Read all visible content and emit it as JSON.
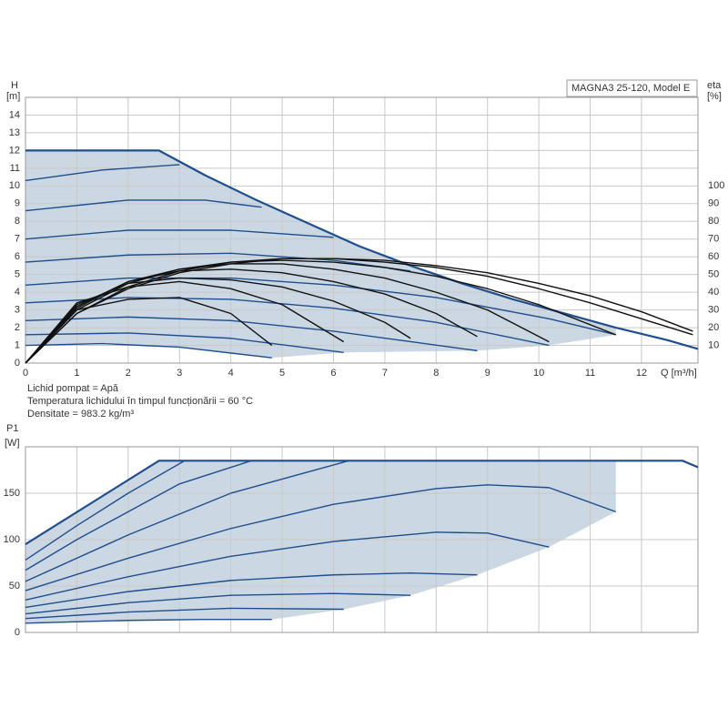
{
  "notes": [
    "Lichid pompat = Apă",
    "Temperatura lichidului în timpul funcționării = 60 °C",
    "Densitate = 983.2 kg/m³"
  ],
  "chart_data": [
    {
      "type": "line",
      "title": "MAGNA3 25-120, Model E",
      "ylabel": "H",
      "yunit": "[m]",
      "y2label": "eta",
      "y2unit": "[%]",
      "xlabel": "Q [m³/h]",
      "xlim": [
        0,
        13.1
      ],
      "ylim": [
        0,
        15
      ],
      "y2lim": [
        0,
        150
      ],
      "xticks": [
        0,
        1,
        2,
        3,
        4,
        5,
        6,
        7,
        8,
        9,
        10,
        11,
        12
      ],
      "yticks": [
        0,
        1,
        2,
        3,
        4,
        5,
        6,
        7,
        8,
        9,
        10,
        11,
        12,
        13,
        14
      ],
      "y2ticks": [
        10,
        20,
        30,
        40,
        50,
        60,
        70,
        80,
        90,
        100
      ],
      "grid": true,
      "shade_color": "#cbd8e4",
      "series": [
        {
          "color": "#1f4e8c",
          "x": [
            0,
            2.6,
            3.5,
            4.5,
            5.5,
            6.5,
            7.5,
            8.5,
            9.5,
            10.5,
            11.5,
            12.5,
            13.1
          ],
          "values": [
            12,
            12,
            10.6,
            9.2,
            7.9,
            6.6,
            5.5,
            4.5,
            3.6,
            2.8,
            2.0,
            1.3,
            0.8
          ]
        },
        {
          "color": "#1f4e8c",
          "x": [
            0,
            1.5,
            3
          ],
          "values": [
            10.3,
            10.9,
            11.2
          ]
        },
        {
          "color": "#1f4e8c",
          "x": [
            0,
            2,
            3.5,
            4.6
          ],
          "values": [
            8.6,
            9.2,
            9.2,
            8.8
          ]
        },
        {
          "color": "#1f4e8c",
          "x": [
            0,
            2,
            4,
            6
          ],
          "values": [
            7.0,
            7.5,
            7.5,
            7.1
          ]
        },
        {
          "color": "#1f4e8c",
          "x": [
            0,
            2,
            4,
            6,
            7.5
          ],
          "values": [
            5.7,
            6.1,
            6.2,
            5.8,
            5.2
          ]
        },
        {
          "color": "#1f4e8c",
          "x": [
            0,
            2,
            4,
            6,
            8,
            10.2,
            11.5
          ],
          "values": [
            4.4,
            4.8,
            4.8,
            4.4,
            3.7,
            2.5,
            1.6
          ]
        },
        {
          "color": "#1f4e8c",
          "x": [
            0,
            2,
            4,
            6,
            8,
            10.2
          ],
          "values": [
            3.4,
            3.7,
            3.6,
            3.1,
            2.3,
            1.0
          ]
        },
        {
          "color": "#1f4e8c",
          "x": [
            0,
            2,
            4,
            6,
            8.8
          ],
          "values": [
            2.4,
            2.6,
            2.4,
            1.8,
            0.7
          ]
        },
        {
          "color": "#1f4e8c",
          "x": [
            0,
            2,
            4,
            6.2
          ],
          "values": [
            1.6,
            1.7,
            1.4,
            0.6
          ]
        },
        {
          "color": "#1f4e8c",
          "x": [
            0,
            1.5,
            3,
            4.8
          ],
          "values": [
            1.0,
            1.1,
            0.9,
            0.3
          ]
        },
        {
          "color": "#111111",
          "axis": "y2",
          "x": [
            0,
            1,
            2,
            3,
            4,
            5,
            6,
            7,
            8,
            9,
            10,
            11,
            12,
            13
          ],
          "values": [
            0,
            28,
            42,
            51,
            56,
            59,
            59,
            57,
            54,
            49,
            42,
            34,
            25,
            16
          ]
        },
        {
          "color": "#111111",
          "axis": "y2",
          "x": [
            0,
            1,
            2,
            3,
            4,
            5,
            6,
            7,
            8,
            9,
            10,
            11,
            12,
            13
          ],
          "values": [
            0,
            28,
            43,
            52,
            57,
            59,
            59,
            58,
            55,
            51,
            45,
            38,
            29,
            18
          ]
        },
        {
          "color": "#111111",
          "axis": "y2",
          "x": [
            0,
            1,
            2,
            3,
            4,
            5,
            6,
            7,
            8,
            9,
            10,
            11.5
          ],
          "values": [
            0,
            30,
            45,
            53,
            57,
            58,
            57,
            54,
            49,
            42,
            33,
            16
          ]
        },
        {
          "color": "#111111",
          "axis": "y2",
          "x": [
            0,
            1,
            2,
            3,
            4,
            5,
            6,
            7,
            8,
            9,
            10.2
          ],
          "values": [
            0,
            31,
            46,
            53,
            56,
            56,
            53,
            48,
            40,
            30,
            12
          ]
        },
        {
          "color": "#111111",
          "axis": "y2",
          "x": [
            0,
            1,
            2,
            3,
            4,
            5,
            6,
            7,
            8,
            8.8
          ],
          "values": [
            0,
            32,
            46,
            52,
            53,
            51,
            46,
            39,
            28,
            15
          ]
        },
        {
          "color": "#111111",
          "axis": "y2",
          "x": [
            0,
            1,
            2,
            3,
            4,
            5,
            6,
            7,
            7.5
          ],
          "values": [
            0,
            33,
            45,
            48,
            47,
            43,
            35,
            23,
            14
          ]
        },
        {
          "color": "#111111",
          "axis": "y2",
          "x": [
            0,
            1,
            2,
            3,
            4,
            5,
            6.2
          ],
          "values": [
            0,
            34,
            43,
            46,
            42,
            33,
            12
          ]
        },
        {
          "color": "#111111",
          "axis": "y2",
          "x": [
            0,
            1,
            2,
            3,
            4,
            4.8
          ],
          "values": [
            0,
            30,
            36,
            37,
            28,
            10
          ]
        }
      ]
    },
    {
      "type": "line",
      "ylabel": "P1",
      "yunit": "[W]",
      "xlim": [
        0,
        13.1
      ],
      "ylim": [
        0,
        200
      ],
      "yticks": [
        0,
        50,
        100,
        150
      ],
      "grid": true,
      "shade_color": "#cbd8e4",
      "series": [
        {
          "color": "#1f4e8c",
          "x": [
            0,
            2.6,
            12.8,
            13.1
          ],
          "values": [
            95,
            185,
            185,
            178
          ]
        },
        {
          "color": "#1f4e8c",
          "x": [
            0,
            1,
            2,
            3.1
          ],
          "values": [
            78,
            115,
            150,
            185
          ]
        },
        {
          "color": "#1f4e8c",
          "x": [
            0,
            1,
            2,
            3,
            4.4
          ],
          "values": [
            67,
            100,
            130,
            160,
            185
          ]
        },
        {
          "color": "#1f4e8c",
          "x": [
            0,
            2,
            4,
            6.3
          ],
          "values": [
            55,
            105,
            150,
            185
          ]
        },
        {
          "color": "#1f4e8c",
          "x": [
            0,
            2,
            4,
            6,
            8,
            9,
            10.2,
            11.5
          ],
          "values": [
            45,
            80,
            112,
            138,
            155,
            159,
            156,
            130
          ]
        },
        {
          "color": "#1f4e8c",
          "x": [
            0,
            2,
            4,
            6,
            8,
            9,
            10.2
          ],
          "values": [
            35,
            60,
            82,
            98,
            108,
            107,
            92
          ]
        },
        {
          "color": "#1f4e8c",
          "x": [
            0,
            2,
            4,
            6,
            7.5,
            8.8
          ],
          "values": [
            27,
            44,
            56,
            62,
            64,
            62
          ]
        },
        {
          "color": "#1f4e8c",
          "x": [
            0,
            2,
            4,
            6,
            7.5
          ],
          "values": [
            20,
            32,
            40,
            42,
            40
          ]
        },
        {
          "color": "#1f4e8c",
          "x": [
            0,
            2,
            4,
            6.2
          ],
          "values": [
            15,
            22,
            26,
            25
          ]
        },
        {
          "color": "#1f4e8c",
          "x": [
            0,
            2,
            3.5,
            4.8
          ],
          "values": [
            10,
            13,
            14,
            14
          ]
        }
      ]
    }
  ]
}
